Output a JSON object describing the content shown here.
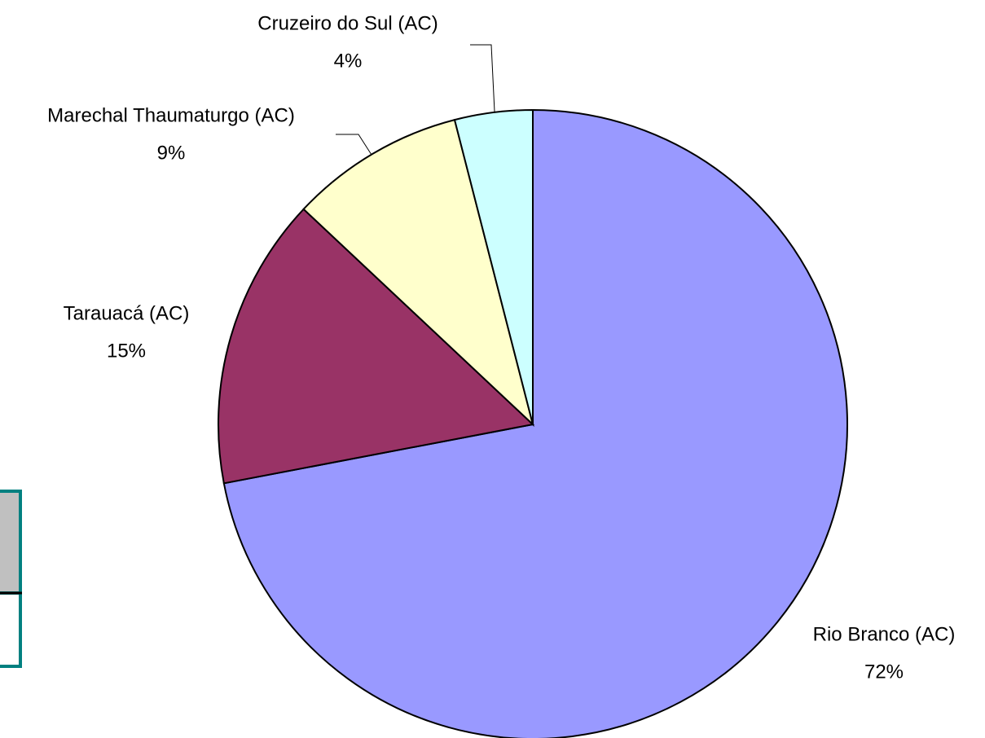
{
  "chart_data": {
    "type": "pie",
    "categories": [
      "Rio Branco (AC)",
      "Tarauacá (AC)",
      "Marechal Thaumaturgo (AC)",
      "Cruzeiro do Sul (AC)"
    ],
    "values": [
      72,
      15,
      9,
      4
    ],
    "value_labels": [
      "72%",
      "15%",
      "9%",
      "4%"
    ],
    "colors": [
      "#9999ff",
      "#993366",
      "#ffffcc",
      "#ccffff"
    ]
  }
}
